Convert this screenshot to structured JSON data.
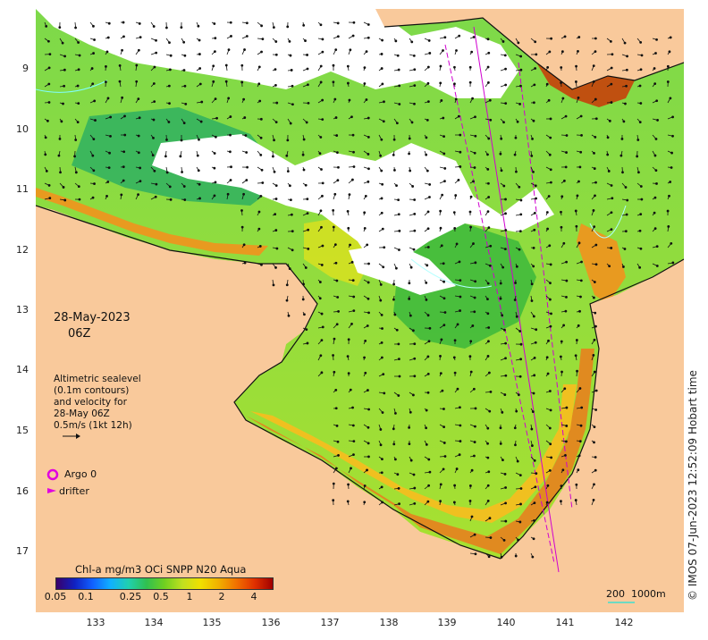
{
  "map": {
    "date": "28-May-2023",
    "time": "06Z",
    "legend_text": "Altimetric sealevel\n(0.1m contours)\nand velocity for\n28-May 06Z\n0.5m/s (1kt 12h)",
    "argo_label": "Argo 0",
    "drifter_label": "drifter",
    "colorbar_title": "Chl-a mg/m3 OCi SNPP N20 Aqua",
    "colorbar_ticks": [
      "0.05",
      "0.1",
      "0.25",
      "0.5",
      "1",
      "2",
      "4"
    ],
    "scale_label": "200  1000m",
    "credit": "© IMOS 07-Jun-2023 12:52:09 Hobart time",
    "lat_ticks": [
      "9",
      "10",
      "11",
      "12",
      "13",
      "14",
      "15",
      "16",
      "17"
    ],
    "lon_ticks": [
      "133",
      "134",
      "135",
      "136",
      "137",
      "138",
      "139",
      "140",
      "141",
      "142"
    ],
    "colors": {
      "land": "#f9c99b",
      "argo": "#e000e0",
      "track": "#d000d0",
      "contour": "#80ffff"
    }
  }
}
